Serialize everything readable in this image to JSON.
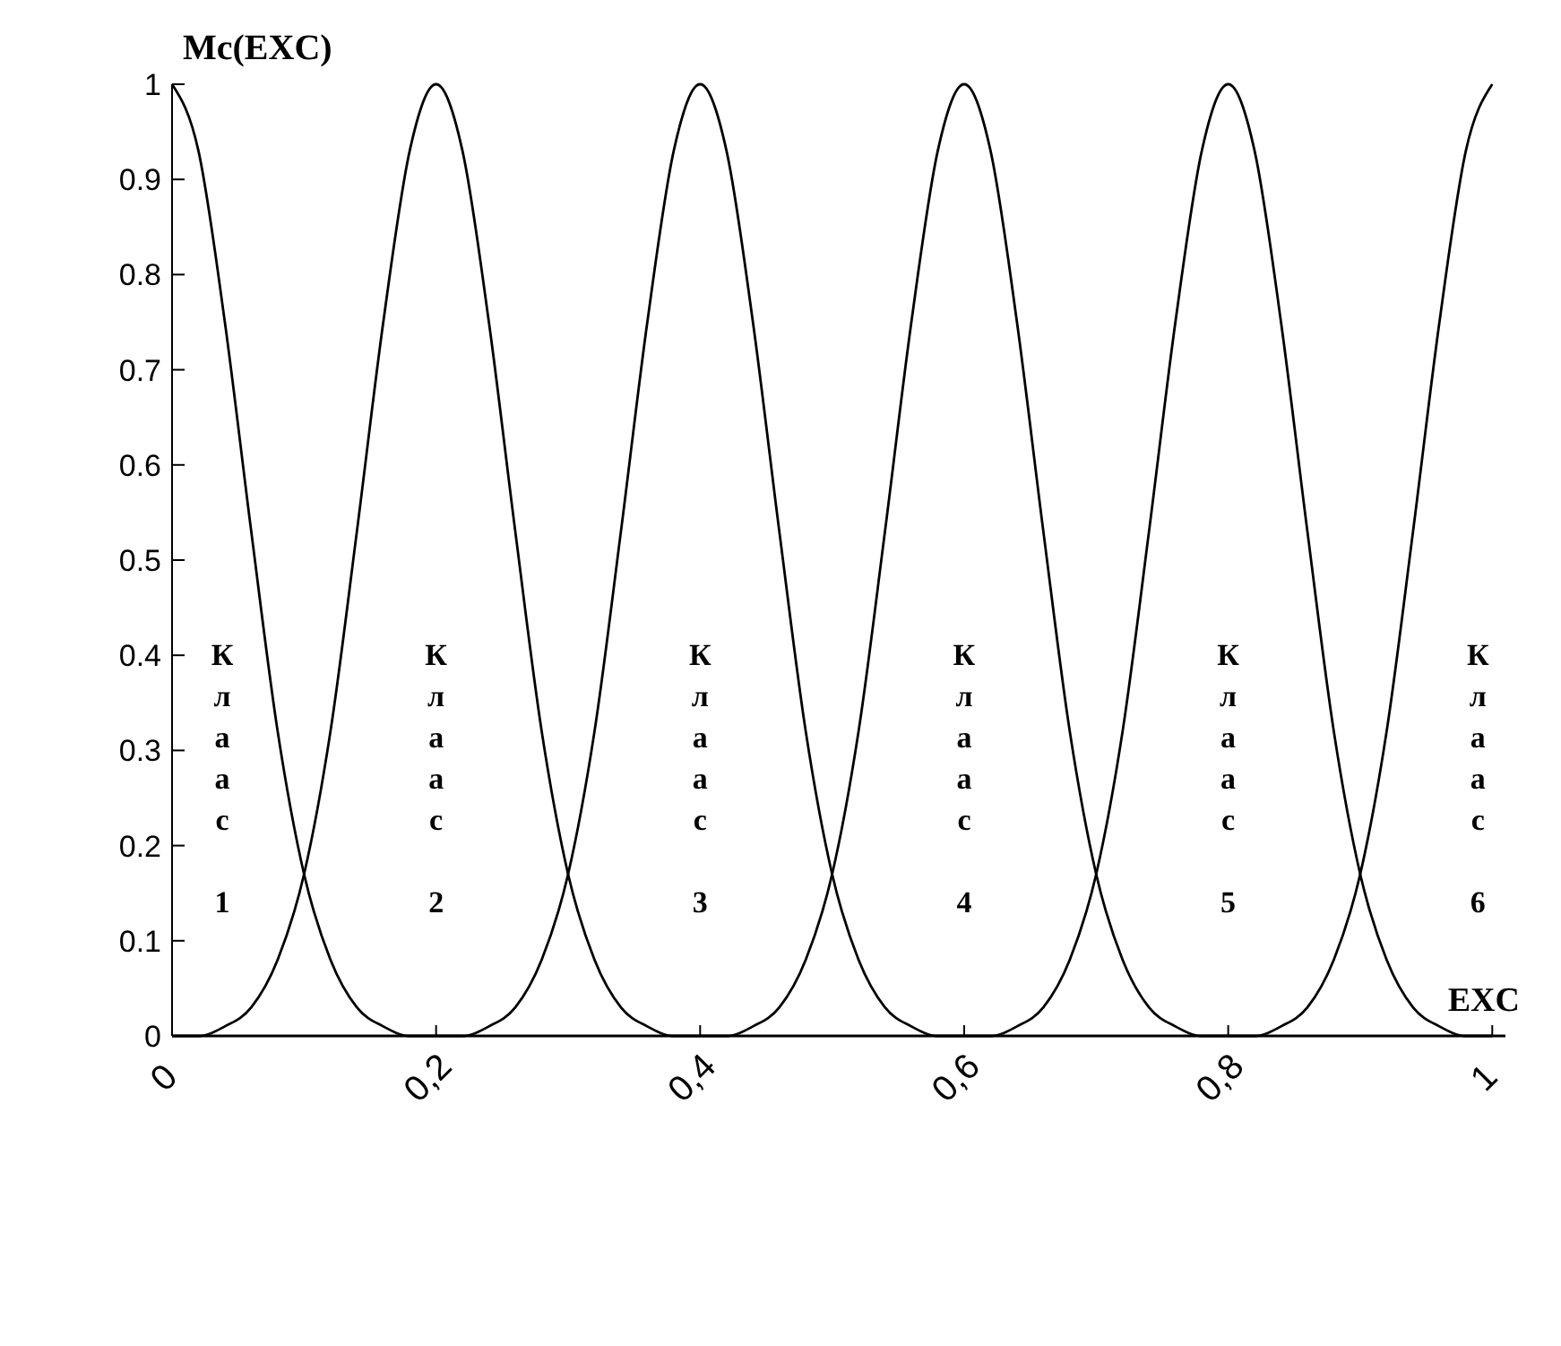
{
  "chart_data": {
    "type": "line",
    "xlabel": "EXC",
    "ylabel": "Mc(EXC)",
    "xlim": [
      0,
      1.01
    ],
    "ylim": [
      0,
      1
    ],
    "xticks": [
      0,
      {
        "value": 0.2,
        "label": "0,2"
      },
      {
        "value": 0.4,
        "label": "0,4"
      },
      {
        "value": 0.6,
        "label": "0,6"
      },
      {
        "value": 0.8,
        "label": "0,8"
      },
      1
    ],
    "yticks": [
      0,
      0.1,
      0.2,
      0.3,
      0.4,
      0.5,
      0.6,
      0.7,
      0.8,
      0.9,
      1
    ],
    "series": [
      {
        "color": "#000000",
        "x": [
          0,
          0.02,
          0.04,
          0.06,
          0.08,
          0.1,
          0.12,
          0.14,
          0.16,
          0.18,
          0.2
        ],
        "values": [
          1,
          0.93,
          0.75,
          0.53,
          0.32,
          0.17,
          0.08,
          0.03,
          0.01,
          0,
          0
        ]
      },
      {
        "color": "#000000",
        "x": [
          0,
          0.02,
          0.04,
          0.06,
          0.08,
          0.1,
          0.12,
          0.14,
          0.16,
          0.18,
          0.2,
          0.22,
          0.24,
          0.26,
          0.28,
          0.3,
          0.32,
          0.34,
          0.36,
          0.38,
          0.4
        ],
        "values": [
          0,
          0,
          0.01,
          0.03,
          0.08,
          0.17,
          0.32,
          0.53,
          0.75,
          0.93,
          1,
          0.93,
          0.75,
          0.53,
          0.32,
          0.17,
          0.08,
          0.03,
          0.01,
          0,
          0
        ]
      },
      {
        "color": "#000000",
        "x": [
          0.2,
          0.22,
          0.24,
          0.26,
          0.28,
          0.3,
          0.32,
          0.34,
          0.36,
          0.38,
          0.4,
          0.42,
          0.44,
          0.46,
          0.48,
          0.5,
          0.52,
          0.54,
          0.56,
          0.58,
          0.6
        ],
        "values": [
          0,
          0,
          0.01,
          0.03,
          0.08,
          0.17,
          0.32,
          0.53,
          0.75,
          0.93,
          1,
          0.93,
          0.75,
          0.53,
          0.32,
          0.17,
          0.08,
          0.03,
          0.01,
          0,
          0
        ]
      },
      {
        "color": "#000000",
        "x": [
          0.4,
          0.42,
          0.44,
          0.46,
          0.48,
          0.5,
          0.52,
          0.54,
          0.56,
          0.58,
          0.6,
          0.62,
          0.64,
          0.66,
          0.68,
          0.7,
          0.72,
          0.74,
          0.76,
          0.78,
          0.8
        ],
        "values": [
          0,
          0,
          0.01,
          0.03,
          0.08,
          0.17,
          0.32,
          0.53,
          0.75,
          0.93,
          1,
          0.93,
          0.75,
          0.53,
          0.32,
          0.17,
          0.08,
          0.03,
          0.01,
          0,
          0
        ]
      },
      {
        "color": "#000000",
        "x": [
          0.6,
          0.62,
          0.64,
          0.66,
          0.68,
          0.7,
          0.72,
          0.74,
          0.76,
          0.78,
          0.8,
          0.82,
          0.84,
          0.86,
          0.88,
          0.9,
          0.92,
          0.94,
          0.96,
          0.98,
          1
        ],
        "values": [
          0,
          0,
          0.01,
          0.03,
          0.08,
          0.17,
          0.32,
          0.53,
          0.75,
          0.93,
          1,
          0.93,
          0.75,
          0.53,
          0.32,
          0.17,
          0.08,
          0.03,
          0.01,
          0,
          0
        ]
      },
      {
        "color": "#000000",
        "x": [
          0.8,
          0.82,
          0.84,
          0.86,
          0.88,
          0.9,
          0.92,
          0.94,
          0.96,
          0.98,
          1
        ],
        "values": [
          0,
          0,
          0.01,
          0.03,
          0.08,
          0.17,
          0.32,
          0.53,
          0.75,
          0.93,
          1
        ]
      }
    ],
    "annotations": [
      "Клаас 1",
      "Клаас 2",
      "Клаас 3",
      "Клаас 4",
      "Клаас 5",
      "Клаас 6"
    ]
  }
}
